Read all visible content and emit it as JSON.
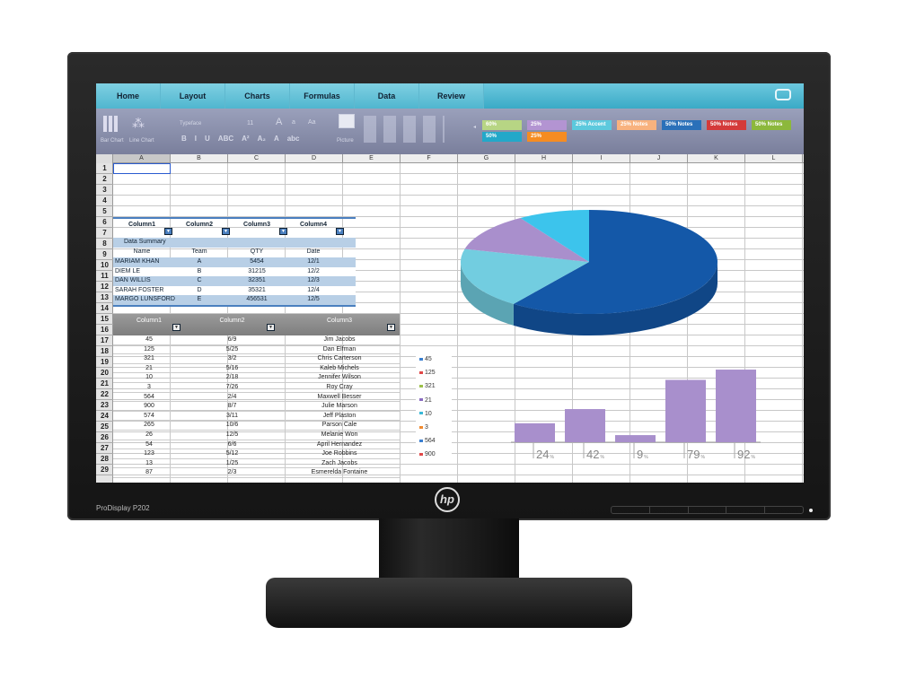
{
  "monitor": {
    "model": "ProDisplay P202",
    "logo": "hp"
  },
  "tabs": [
    "Home",
    "Layout",
    "Charts",
    "Formulas",
    "Data",
    "Review"
  ],
  "ribbon": {
    "chart_buttons": [
      "Bar Chart",
      "Line Chart"
    ],
    "font": {
      "typeface": "Typeface",
      "size": "11",
      "grow": "A",
      "shrink": "a",
      "case": "Aa"
    },
    "format_buttons": [
      "B",
      "I",
      "U",
      "ABC",
      "A²",
      "A₂",
      "A",
      "abc"
    ],
    "picture": "Picture",
    "styles": [
      {
        "label": "60%",
        "color": "#b7d584"
      },
      {
        "label": "25%",
        "color": "#b394d2"
      },
      {
        "label": "25% Accent",
        "color": "#5cc9dd"
      },
      {
        "label": "25% Notes",
        "color": "#f8b27e"
      },
      {
        "label": "50% Notes",
        "color": "#2a70b9"
      },
      {
        "label": "50% Notes",
        "color": "#d43a3a"
      },
      {
        "label": "50% Notes",
        "color": "#8cb83c"
      },
      {
        "label": "50%",
        "color": "#23a8c9"
      },
      {
        "label": "25%",
        "color": "#f58c22"
      }
    ]
  },
  "columns": [
    "A",
    "B",
    "C",
    "D",
    "E",
    "F",
    "G",
    "H",
    "I",
    "J",
    "K",
    "L"
  ],
  "rows": [
    "1",
    "2",
    "3",
    "4",
    "5",
    "6",
    "7",
    "8",
    "9",
    "10",
    "11",
    "12",
    "13",
    "14",
    "15",
    "16",
    "17",
    "18",
    "19",
    "20",
    "21",
    "22",
    "23",
    "24",
    "25",
    "26",
    "27",
    "28",
    "29"
  ],
  "table1": {
    "headers": [
      "Column1",
      "Column2",
      "Column3",
      "Column4"
    ],
    "summary": "Data Summary",
    "subheaders": [
      "Name",
      "Team",
      "QTY",
      "Date"
    ],
    "rows": [
      [
        "MARIAM KHAN",
        "A",
        "5454",
        "12/1"
      ],
      [
        "DIEM LE",
        "B",
        "31215",
        "12/2"
      ],
      [
        "DAN  WILLIS",
        "C",
        "32351",
        "12/3"
      ],
      [
        "SARAH FOSTER",
        "D",
        "35321",
        "12/4"
      ],
      [
        "MARGO LUNSFORD",
        "E",
        "456531",
        "12/5"
      ]
    ]
  },
  "table2": {
    "headers": [
      "Column1",
      "Column2",
      "Column3"
    ],
    "rows": [
      [
        "45",
        "6/9",
        "Jim Jacobs"
      ],
      [
        "125",
        "5/25",
        "Dan Elfman"
      ],
      [
        "321",
        "3/2",
        "Chris Carterson"
      ],
      [
        "21",
        "5/16",
        "Kaleb Michels"
      ],
      [
        "10",
        "2/18",
        "Jennifer Wilson"
      ],
      [
        "3",
        "7/26",
        "Roy Cray"
      ],
      [
        "564",
        "2/4",
        "Maxwell Besser"
      ],
      [
        "900",
        "8/7",
        "Julie Marson"
      ],
      [
        "574",
        "3/11",
        "Jeff Plaston"
      ],
      [
        "265",
        "10/6",
        "Parson Cale"
      ],
      [
        "26",
        "12/5",
        "Melanie Won"
      ],
      [
        "54",
        "6/6",
        "April Hernandez"
      ],
      [
        "123",
        "5/12",
        "Joe Robbins"
      ],
      [
        "13",
        "1/25",
        "Zach Jacobs"
      ],
      [
        "87",
        "2/3",
        "Esmerelda Fontaine"
      ]
    ]
  },
  "legend": [
    {
      "label": "45",
      "color": "#3a7fd0"
    },
    {
      "label": "125",
      "color": "#e04848"
    },
    {
      "label": "321",
      "color": "#9cc04a"
    },
    {
      "label": "21",
      "color": "#8a6cc0"
    },
    {
      "label": "10",
      "color": "#3ab8d8"
    },
    {
      "label": "3",
      "color": "#f08a30"
    },
    {
      "label": "564",
      "color": "#3a7fd0"
    },
    {
      "label": "900",
      "color": "#e04848"
    }
  ],
  "chart_data": [
    {
      "type": "pie",
      "style": "3d",
      "slices": [
        {
          "share": 60,
          "color": "#1458a8"
        },
        {
          "share": 19,
          "color": "#72cde0"
        },
        {
          "share": 12,
          "color": "#a98fcc"
        },
        {
          "share": 9,
          "color": "#3cc4ec"
        }
      ]
    },
    {
      "type": "bar",
      "categories": [
        "24",
        "42",
        "9",
        "79",
        "92"
      ],
      "values": [
        24,
        42,
        9,
        79,
        92
      ],
      "unit": "%",
      "color": "#a88fcc"
    }
  ]
}
